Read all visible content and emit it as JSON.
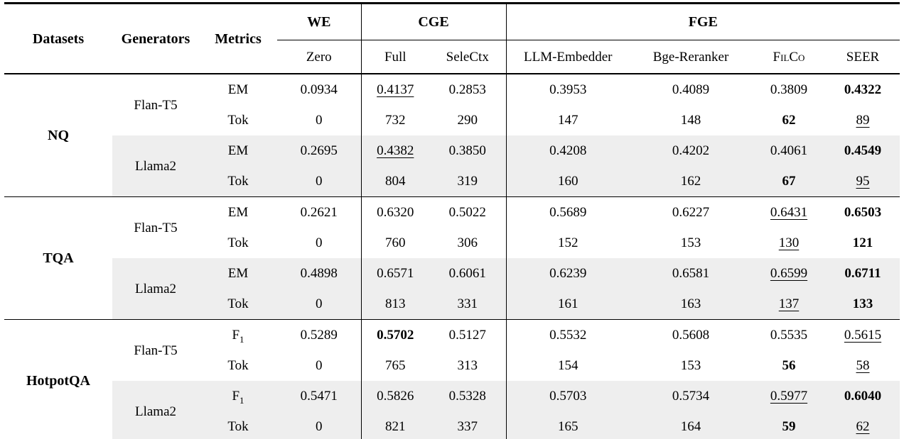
{
  "colors": {
    "rule": "#000000",
    "row_shade": "#eeeeee",
    "text": "#000000"
  },
  "table": {
    "header": {
      "datasets": "Datasets",
      "generators": "Generators",
      "metrics": "Metrics",
      "groups": [
        {
          "label": "WE",
          "cols": [
            "Zero"
          ]
        },
        {
          "label": "CGE",
          "cols": [
            "Full",
            "SeleCtx"
          ]
        },
        {
          "label": "FGE",
          "cols": [
            "LLM-Embedder",
            "Bge-Reranker",
            "FilCo",
            "SEER"
          ]
        }
      ]
    },
    "body": [
      {
        "dataset": "NQ",
        "generators": [
          {
            "name": "Flan-T5",
            "shaded": false,
            "rows": [
              {
                "metric": "EM",
                "cells": [
                  {
                    "t": "0.0934"
                  },
                  {
                    "t": "0.4137",
                    "u": 1
                  },
                  {
                    "t": "0.2853"
                  },
                  {
                    "t": "0.3953"
                  },
                  {
                    "t": "0.4089"
                  },
                  {
                    "t": "0.3809"
                  },
                  {
                    "t": "0.4322",
                    "b": 1
                  }
                ]
              },
              {
                "metric": "Tok",
                "cells": [
                  {
                    "t": "0"
                  },
                  {
                    "t": "732"
                  },
                  {
                    "t": "290"
                  },
                  {
                    "t": "147"
                  },
                  {
                    "t": "148"
                  },
                  {
                    "t": "62",
                    "b": 1
                  },
                  {
                    "t": "89",
                    "u": 1
                  }
                ]
              }
            ]
          },
          {
            "name": "Llama2",
            "shaded": true,
            "rows": [
              {
                "metric": "EM",
                "cells": [
                  {
                    "t": "0.2695"
                  },
                  {
                    "t": "0.4382",
                    "u": 1
                  },
                  {
                    "t": "0.3850"
                  },
                  {
                    "t": "0.4208"
                  },
                  {
                    "t": "0.4202"
                  },
                  {
                    "t": "0.4061"
                  },
                  {
                    "t": "0.4549",
                    "b": 1
                  }
                ]
              },
              {
                "metric": "Tok",
                "cells": [
                  {
                    "t": "0"
                  },
                  {
                    "t": "804"
                  },
                  {
                    "t": "319"
                  },
                  {
                    "t": "160"
                  },
                  {
                    "t": "162"
                  },
                  {
                    "t": "67",
                    "b": 1
                  },
                  {
                    "t": "95",
                    "u": 1
                  }
                ]
              }
            ]
          }
        ]
      },
      {
        "dataset": "TQA",
        "generators": [
          {
            "name": "Flan-T5",
            "shaded": false,
            "rows": [
              {
                "metric": "EM",
                "cells": [
                  {
                    "t": "0.2621"
                  },
                  {
                    "t": "0.6320"
                  },
                  {
                    "t": "0.5022"
                  },
                  {
                    "t": "0.5689"
                  },
                  {
                    "t": "0.6227"
                  },
                  {
                    "t": "0.6431",
                    "u": 1
                  },
                  {
                    "t": "0.6503",
                    "b": 1
                  }
                ]
              },
              {
                "metric": "Tok",
                "cells": [
                  {
                    "t": "0"
                  },
                  {
                    "t": "760"
                  },
                  {
                    "t": "306"
                  },
                  {
                    "t": "152"
                  },
                  {
                    "t": "153"
                  },
                  {
                    "t": "130",
                    "u": 1
                  },
                  {
                    "t": "121",
                    "b": 1
                  }
                ]
              }
            ]
          },
          {
            "name": "Llama2",
            "shaded": true,
            "rows": [
              {
                "metric": "EM",
                "cells": [
                  {
                    "t": "0.4898"
                  },
                  {
                    "t": "0.6571"
                  },
                  {
                    "t": "0.6061"
                  },
                  {
                    "t": "0.6239"
                  },
                  {
                    "t": "0.6581"
                  },
                  {
                    "t": "0.6599",
                    "u": 1
                  },
                  {
                    "t": "0.6711",
                    "b": 1
                  }
                ]
              },
              {
                "metric": "Tok",
                "cells": [
                  {
                    "t": "0"
                  },
                  {
                    "t": "813"
                  },
                  {
                    "t": "331"
                  },
                  {
                    "t": "161"
                  },
                  {
                    "t": "163"
                  },
                  {
                    "t": "137",
                    "u": 1
                  },
                  {
                    "t": "133",
                    "b": 1
                  }
                ]
              }
            ]
          }
        ]
      },
      {
        "dataset": "HotpotQA",
        "generators": [
          {
            "name": "Flan-T5",
            "shaded": false,
            "rows": [
              {
                "metric": "F",
                "sub": "1",
                "cells": [
                  {
                    "t": "0.5289"
                  },
                  {
                    "t": "0.5702",
                    "b": 1
                  },
                  {
                    "t": "0.5127"
                  },
                  {
                    "t": "0.5532"
                  },
                  {
                    "t": "0.5608"
                  },
                  {
                    "t": "0.5535"
                  },
                  {
                    "t": "0.5615",
                    "u": 1
                  }
                ]
              },
              {
                "metric": "Tok",
                "cells": [
                  {
                    "t": "0"
                  },
                  {
                    "t": "765"
                  },
                  {
                    "t": "313"
                  },
                  {
                    "t": "154"
                  },
                  {
                    "t": "153"
                  },
                  {
                    "t": "56",
                    "b": 1
                  },
                  {
                    "t": "58",
                    "u": 1
                  }
                ]
              }
            ]
          },
          {
            "name": "Llama2",
            "shaded": true,
            "rows": [
              {
                "metric": "F",
                "sub": "1",
                "cells": [
                  {
                    "t": "0.5471"
                  },
                  {
                    "t": "0.5826"
                  },
                  {
                    "t": "0.5328"
                  },
                  {
                    "t": "0.5703"
                  },
                  {
                    "t": "0.5734"
                  },
                  {
                    "t": "0.5977",
                    "u": 1
                  },
                  {
                    "t": "0.6040",
                    "b": 1
                  }
                ]
              },
              {
                "metric": "Tok",
                "cells": [
                  {
                    "t": "0"
                  },
                  {
                    "t": "821"
                  },
                  {
                    "t": "337"
                  },
                  {
                    "t": "165"
                  },
                  {
                    "t": "164"
                  },
                  {
                    "t": "59",
                    "b": 1
                  },
                  {
                    "t": "62",
                    "u": 1
                  }
                ]
              }
            ]
          }
        ]
      }
    ]
  }
}
